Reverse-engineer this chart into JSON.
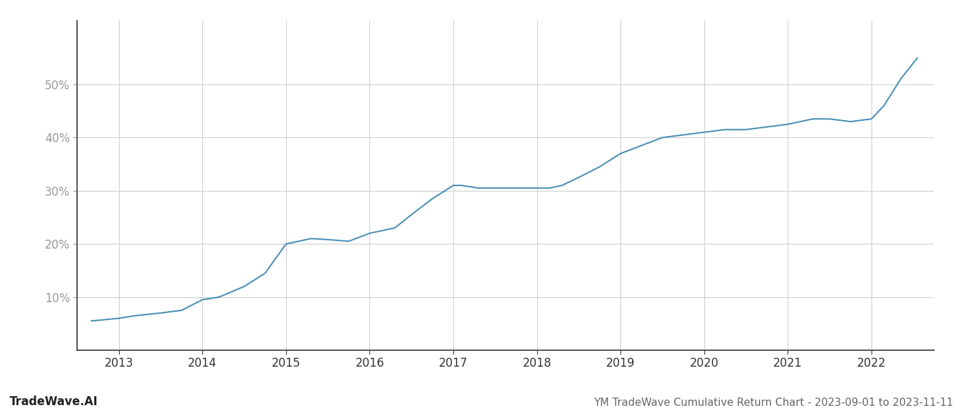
{
  "title": "YM TradeWave Cumulative Return Chart - 2023-09-01 to 2023-11-11",
  "watermark": "TradeWave.AI",
  "line_color": "#4a90b8",
  "background_color": "#ffffff",
  "grid_color": "#d0d0d0",
  "x_years": [
    2013,
    2014,
    2015,
    2016,
    2017,
    2018,
    2019,
    2020,
    2021,
    2022
  ],
  "x_data": [
    2012.67,
    2013.0,
    2013.2,
    2013.5,
    2013.75,
    2014.0,
    2014.2,
    2014.5,
    2014.75,
    2015.0,
    2015.15,
    2015.3,
    2015.5,
    2015.75,
    2016.0,
    2016.15,
    2016.3,
    2016.5,
    2016.75,
    2017.0,
    2017.1,
    2017.3,
    2017.5,
    2017.75,
    2018.0,
    2018.15,
    2018.3,
    2018.5,
    2018.75,
    2019.0,
    2019.25,
    2019.5,
    2019.75,
    2020.0,
    2020.25,
    2020.5,
    2020.75,
    2021.0,
    2021.15,
    2021.3,
    2021.5,
    2021.75,
    2022.0,
    2022.15,
    2022.35,
    2022.55
  ],
  "y_data": [
    5.5,
    6.0,
    6.5,
    7.0,
    7.5,
    9.5,
    10.0,
    12.0,
    14.5,
    20.0,
    20.5,
    21.0,
    20.8,
    20.5,
    22.0,
    22.5,
    23.0,
    25.5,
    28.5,
    31.0,
    31.0,
    30.5,
    30.5,
    30.5,
    30.5,
    30.5,
    31.0,
    32.5,
    34.5,
    37.0,
    38.5,
    40.0,
    40.5,
    41.0,
    41.5,
    41.5,
    42.0,
    42.5,
    43.0,
    43.5,
    43.5,
    43.0,
    43.5,
    46.0,
    51.0,
    55.0
  ],
  "yticks": [
    10,
    20,
    30,
    40,
    50
  ],
  "ylim": [
    0,
    62
  ],
  "xlim": [
    2012.5,
    2022.75
  ],
  "tick_label_color": "#999999",
  "tick_fontsize": 12,
  "title_fontsize": 11,
  "watermark_fontsize": 12,
  "line_width": 1.5,
  "spine_color": "#333333"
}
